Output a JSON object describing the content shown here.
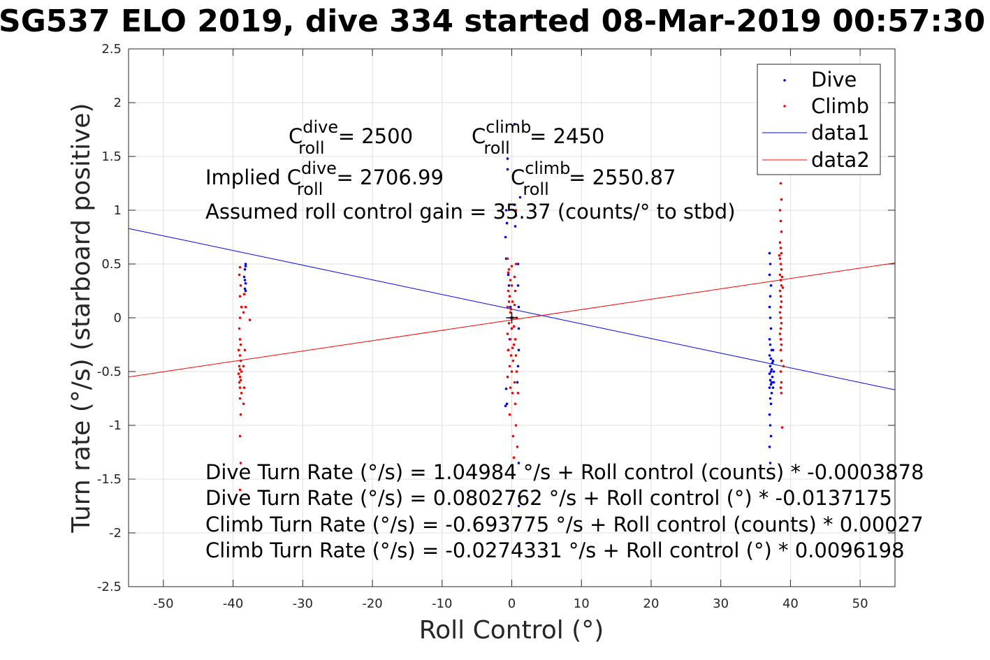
{
  "chart_data": {
    "type": "scatter",
    "title": "SG537 ELO 2019, dive 334 started 08-Mar-2019 00:57:30",
    "xlabel": "Roll Control (°)",
    "ylabel": "Turn rate (°/s) (starboard positive)",
    "xlim": [
      -55,
      55
    ],
    "ylim": [
      -2.5,
      2.5
    ],
    "x_ticks": [
      -50,
      -40,
      -30,
      -20,
      -10,
      0,
      10,
      20,
      30,
      40,
      50
    ],
    "y_ticks": [
      -2.5,
      -2,
      -1.5,
      -1,
      -0.5,
      0,
      0.5,
      1,
      1.5,
      2,
      2.5
    ],
    "x_tick_labels": [
      "-50",
      "-40",
      "-30",
      "-20",
      "-10",
      "0",
      "10",
      "20",
      "30",
      "40",
      "50"
    ],
    "y_tick_labels": [
      "-2.5",
      "-2",
      "-1.5",
      "-1",
      "-0.5",
      "0",
      "0.5",
      "1",
      "1.5",
      "2",
      "2.5"
    ],
    "grid": true,
    "legend_position": "top-right",
    "series": [
      {
        "name": "Dive",
        "kind": "scatter",
        "color": "#0000ff",
        "points": [
          [
            -38.2,
            0.5
          ],
          [
            -38.3,
            0.45
          ],
          [
            -38.4,
            0.38
          ],
          [
            -38.2,
            0.32
          ],
          [
            -38.3,
            0.27
          ],
          [
            -38.4,
            0.22
          ],
          [
            -38.2,
            0.48
          ],
          [
            -38.3,
            0.35
          ],
          [
            -38.2,
            0.25
          ],
          [
            -0.6,
            1.48
          ],
          [
            -0.6,
            1.38
          ],
          [
            -0.8,
            1.0
          ],
          [
            -0.7,
            0.88
          ],
          [
            -0.9,
            0.75
          ],
          [
            -0.8,
            0.55
          ],
          [
            -0.5,
            0.4
          ],
          [
            -0.4,
            0.3
          ],
          [
            -0.3,
            0.2
          ],
          [
            -0.2,
            0.1
          ],
          [
            -0.1,
            0.0
          ],
          [
            0.0,
            -0.1
          ],
          [
            -0.3,
            -0.2
          ],
          [
            -0.5,
            -0.3
          ],
          [
            -0.8,
            -0.66
          ],
          [
            -0.9,
            -0.82
          ],
          [
            -0.7,
            -0.8
          ],
          [
            0.4,
            1.05
          ],
          [
            0.5,
            0.85
          ],
          [
            0.9,
            0.5
          ],
          [
            0.9,
            0.3
          ],
          [
            1.0,
            0.1
          ],
          [
            1.0,
            -0.1
          ],
          [
            1.0,
            -0.3
          ],
          [
            0.9,
            -0.45
          ],
          [
            0.8,
            -0.6
          ],
          [
            1.0,
            -1.35
          ],
          [
            1.0,
            -1.75
          ],
          [
            1.2,
            1.12
          ],
          [
            0.4,
            1.8
          ],
          [
            0.6,
            0.95
          ],
          [
            37.0,
            0.6
          ],
          [
            37.1,
            0.5
          ],
          [
            37.0,
            0.4
          ],
          [
            37.2,
            0.3
          ],
          [
            37.1,
            0.2
          ],
          [
            37.0,
            0.1
          ],
          [
            37.1,
            0.0
          ],
          [
            37.2,
            -0.1
          ],
          [
            37.0,
            -0.2
          ],
          [
            37.1,
            -0.25
          ],
          [
            37.3,
            -0.3
          ],
          [
            37.0,
            -0.35
          ],
          [
            37.2,
            -0.38
          ],
          [
            37.4,
            -0.42
          ],
          [
            37.1,
            -0.45
          ],
          [
            37.3,
            -0.48
          ],
          [
            37.2,
            -0.5
          ],
          [
            37.0,
            -0.52
          ],
          [
            37.4,
            -0.55
          ],
          [
            37.1,
            -0.58
          ],
          [
            37.3,
            -0.6
          ],
          [
            37.2,
            -0.62
          ],
          [
            37.0,
            -0.65
          ],
          [
            37.3,
            -0.7
          ],
          [
            37.1,
            -0.75
          ],
          [
            37.2,
            -0.8
          ],
          [
            37.0,
            -0.9
          ],
          [
            37.1,
            -1.0
          ],
          [
            37.2,
            -1.1
          ],
          [
            37.0,
            -1.2
          ],
          [
            37.1,
            -1.35
          ],
          [
            37.5,
            -0.4
          ],
          [
            37.6,
            -0.5
          ],
          [
            37.5,
            -0.3
          ],
          [
            37.6,
            -0.6
          ],
          [
            37.5,
            -0.65
          ]
        ]
      },
      {
        "name": "Climb",
        "kind": "scatter",
        "color": "#ff0000",
        "points": [
          [
            -39.0,
            0.47
          ],
          [
            -39.1,
            0.4
          ],
          [
            -38.9,
            0.3
          ],
          [
            -39.0,
            0.2
          ],
          [
            -38.8,
            0.1
          ],
          [
            -39.0,
            0.0
          ],
          [
            -39.1,
            -0.1
          ],
          [
            -39.0,
            -0.2
          ],
          [
            -38.9,
            -0.25
          ],
          [
            -39.2,
            -0.3
          ],
          [
            -39.0,
            -0.35
          ],
          [
            -38.9,
            -0.4
          ],
          [
            -39.1,
            -0.45
          ],
          [
            -39.0,
            -0.48
          ],
          [
            -38.8,
            -0.5
          ],
          [
            -39.2,
            -0.52
          ],
          [
            -39.0,
            -0.55
          ],
          [
            -38.9,
            -0.58
          ],
          [
            -39.1,
            -0.6
          ],
          [
            -39.0,
            -0.65
          ],
          [
            -38.8,
            -0.7
          ],
          [
            -39.0,
            -0.75
          ],
          [
            -38.9,
            -0.9
          ],
          [
            -39.0,
            -1.1
          ],
          [
            -38.9,
            -1.35
          ],
          [
            -39.0,
            -1.6
          ],
          [
            -38.5,
            -0.8
          ],
          [
            -38.4,
            -0.65
          ],
          [
            -38.5,
            -0.45
          ],
          [
            -38.3,
            -0.3
          ],
          [
            -38.2,
            0.1
          ],
          [
            -37.6,
            -0.02
          ],
          [
            -38.4,
            0.22
          ],
          [
            -38.5,
            0.05
          ],
          [
            -0.6,
            0.55
          ],
          [
            -0.4,
            0.45
          ],
          [
            -0.2,
            0.35
          ],
          [
            0.0,
            0.3
          ],
          [
            -0.5,
            0.25
          ],
          [
            -0.3,
            0.2
          ],
          [
            0.1,
            0.15
          ],
          [
            -0.6,
            0.1
          ],
          [
            -0.2,
            0.05
          ],
          [
            0.2,
            0.0
          ],
          [
            -0.4,
            -0.05
          ],
          [
            0.0,
            -0.1
          ],
          [
            -0.6,
            -0.15
          ],
          [
            -0.2,
            -0.2
          ],
          [
            0.3,
            -0.25
          ],
          [
            -0.5,
            -0.3
          ],
          [
            -0.1,
            -0.35
          ],
          [
            0.2,
            -0.4
          ],
          [
            -0.3,
            -0.45
          ],
          [
            0.0,
            -0.5
          ],
          [
            -0.6,
            -0.55
          ],
          [
            0.4,
            -0.6
          ],
          [
            -0.2,
            -0.65
          ],
          [
            0.1,
            -0.7
          ],
          [
            0.5,
            -0.8
          ],
          [
            -0.3,
            -0.9
          ],
          [
            0.6,
            -1.0
          ],
          [
            0.2,
            -1.1
          ],
          [
            0.8,
            -1.2
          ],
          [
            0.3,
            -1.3
          ],
          [
            0.6,
            0.5
          ],
          [
            0.5,
            0.25
          ],
          [
            0.7,
            0.0
          ],
          [
            0.5,
            -0.2
          ],
          [
            0.6,
            -0.35
          ],
          [
            0.7,
            -0.5
          ],
          [
            0.9,
            -0.7
          ],
          [
            0.4,
            0.38
          ],
          [
            -0.5,
            0.42
          ],
          [
            0.0,
            0.48
          ],
          [
            0.6,
            1.0
          ],
          [
            -0.1,
            0.08
          ],
          [
            0.3,
            -0.08
          ],
          [
            -0.4,
            0.15
          ],
          [
            0.1,
            -0.28
          ],
          [
            0.4,
            0.12
          ],
          [
            38.6,
            1.25
          ],
          [
            38.7,
            1.1
          ],
          [
            38.5,
            1.0
          ],
          [
            38.6,
            0.9
          ],
          [
            38.7,
            0.8
          ],
          [
            38.5,
            0.7
          ],
          [
            38.6,
            0.65
          ],
          [
            38.7,
            0.6
          ],
          [
            38.5,
            0.55
          ],
          [
            38.6,
            0.5
          ],
          [
            38.7,
            0.45
          ],
          [
            38.5,
            0.4
          ],
          [
            38.6,
            0.35
          ],
          [
            38.7,
            0.3
          ],
          [
            38.5,
            0.25
          ],
          [
            38.6,
            0.2
          ],
          [
            38.7,
            0.15
          ],
          [
            38.6,
            0.1
          ],
          [
            38.5,
            0.05
          ],
          [
            38.6,
            0.0
          ],
          [
            38.7,
            -0.05
          ],
          [
            38.6,
            -0.1
          ],
          [
            38.5,
            -0.15
          ],
          [
            38.6,
            -0.2
          ],
          [
            38.7,
            -0.25
          ],
          [
            38.6,
            -0.3
          ],
          [
            38.7,
            -0.4
          ],
          [
            38.6,
            -0.5
          ],
          [
            38.7,
            -0.6
          ],
          [
            38.6,
            -0.65
          ],
          [
            38.7,
            -0.7
          ],
          [
            38.8,
            -1.02
          ],
          [
            39.0,
            -0.45
          ],
          [
            38.8,
            0.38
          ],
          [
            38.4,
            0.58
          ],
          [
            38.9,
            0.28
          ]
        ]
      },
      {
        "name": "data1",
        "kind": "line",
        "color": "#0000ff",
        "points": [
          [
            -55,
            0.83
          ],
          [
            55,
            -0.67
          ]
        ]
      },
      {
        "name": "data2",
        "kind": "line",
        "color": "#ff0000",
        "points": [
          [
            -55,
            -0.55
          ],
          [
            55,
            0.51
          ]
        ]
      }
    ],
    "center_marker": [
      0,
      0
    ]
  },
  "annotations": {
    "c_roll_dive": {
      "prefix": "C",
      "sup": "dive",
      "sub": "roll",
      "suffix": " = 2500"
    },
    "c_roll_climb": {
      "prefix": "C",
      "sup": "climb",
      "sub": "roll",
      "suffix": " = 2450"
    },
    "implied_dive": {
      "prefix": "Implied C",
      "sup": "dive",
      "sub": "roll",
      "suffix": " = 2706.99"
    },
    "implied_climb": {
      "prefix": "C",
      "sup": "climb",
      "sub": "roll",
      "suffix": " = 2550.87"
    },
    "gain": "Assumed roll control gain = 35.37 (counts/° to stbd)",
    "eq_dive_counts": "Dive Turn Rate (°/s) = 1.04984 °/s + Roll control (counts) * -0.0003878",
    "eq_dive_deg": "Dive Turn Rate (°/s) = 0.0802762 °/s + Roll control (°) * -0.0137175",
    "eq_climb_counts": "Climb Turn Rate (°/s) = -0.693775 °/s + Roll control (counts) * 0.00027",
    "eq_climb_deg": "Climb Turn Rate (°/s) = -0.0274331 °/s + Roll control (°) * 0.0096198"
  }
}
